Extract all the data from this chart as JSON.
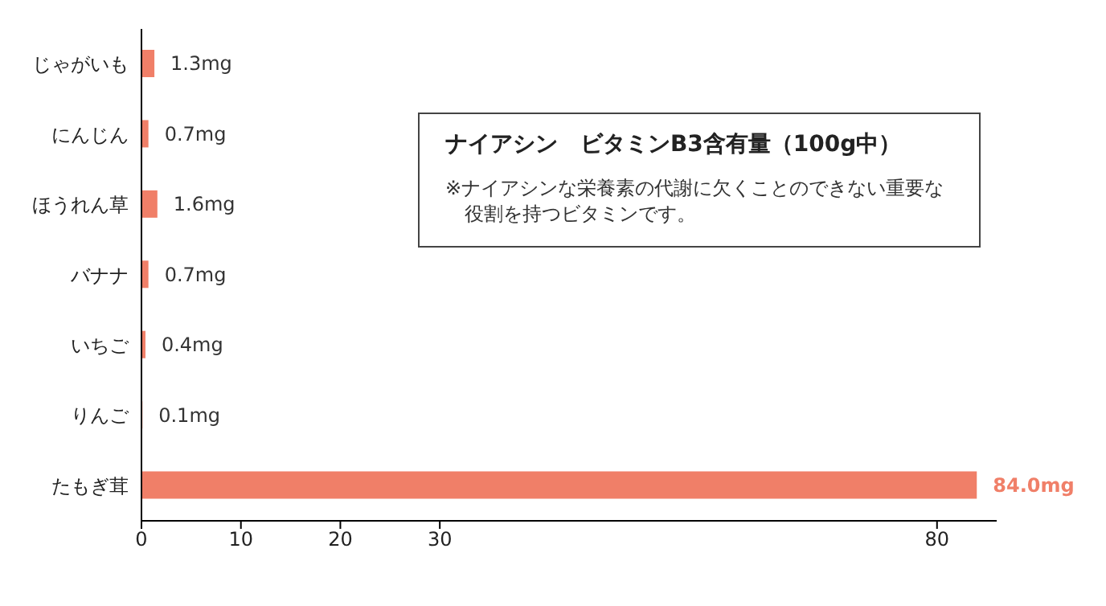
{
  "chart_data": {
    "type": "bar",
    "orientation": "horizontal",
    "title": "ナイアシン　ビタミンB3含有量（100g中）",
    "annotations": [
      "※ナイアシンな栄養素の代謝に欠くことのできない重要な役割を持つビタミンです。"
    ],
    "categories": [
      "じゃがいも",
      "にんじん",
      "ほうれん草",
      "バナナ",
      "いちご",
      "りんご",
      "たもぎ茸"
    ],
    "values": [
      1.3,
      0.7,
      1.6,
      0.7,
      0.4,
      0.1,
      84.0
    ],
    "value_labels": [
      "1.3mg",
      "0.7mg",
      "1.6mg",
      "0.7mg",
      "0.4mg",
      "0.1mg",
      "84.0mg"
    ],
    "color": "#f07f68",
    "xlim": [
      0,
      86
    ],
    "xticks": [
      0,
      10,
      20,
      30,
      80
    ]
  }
}
